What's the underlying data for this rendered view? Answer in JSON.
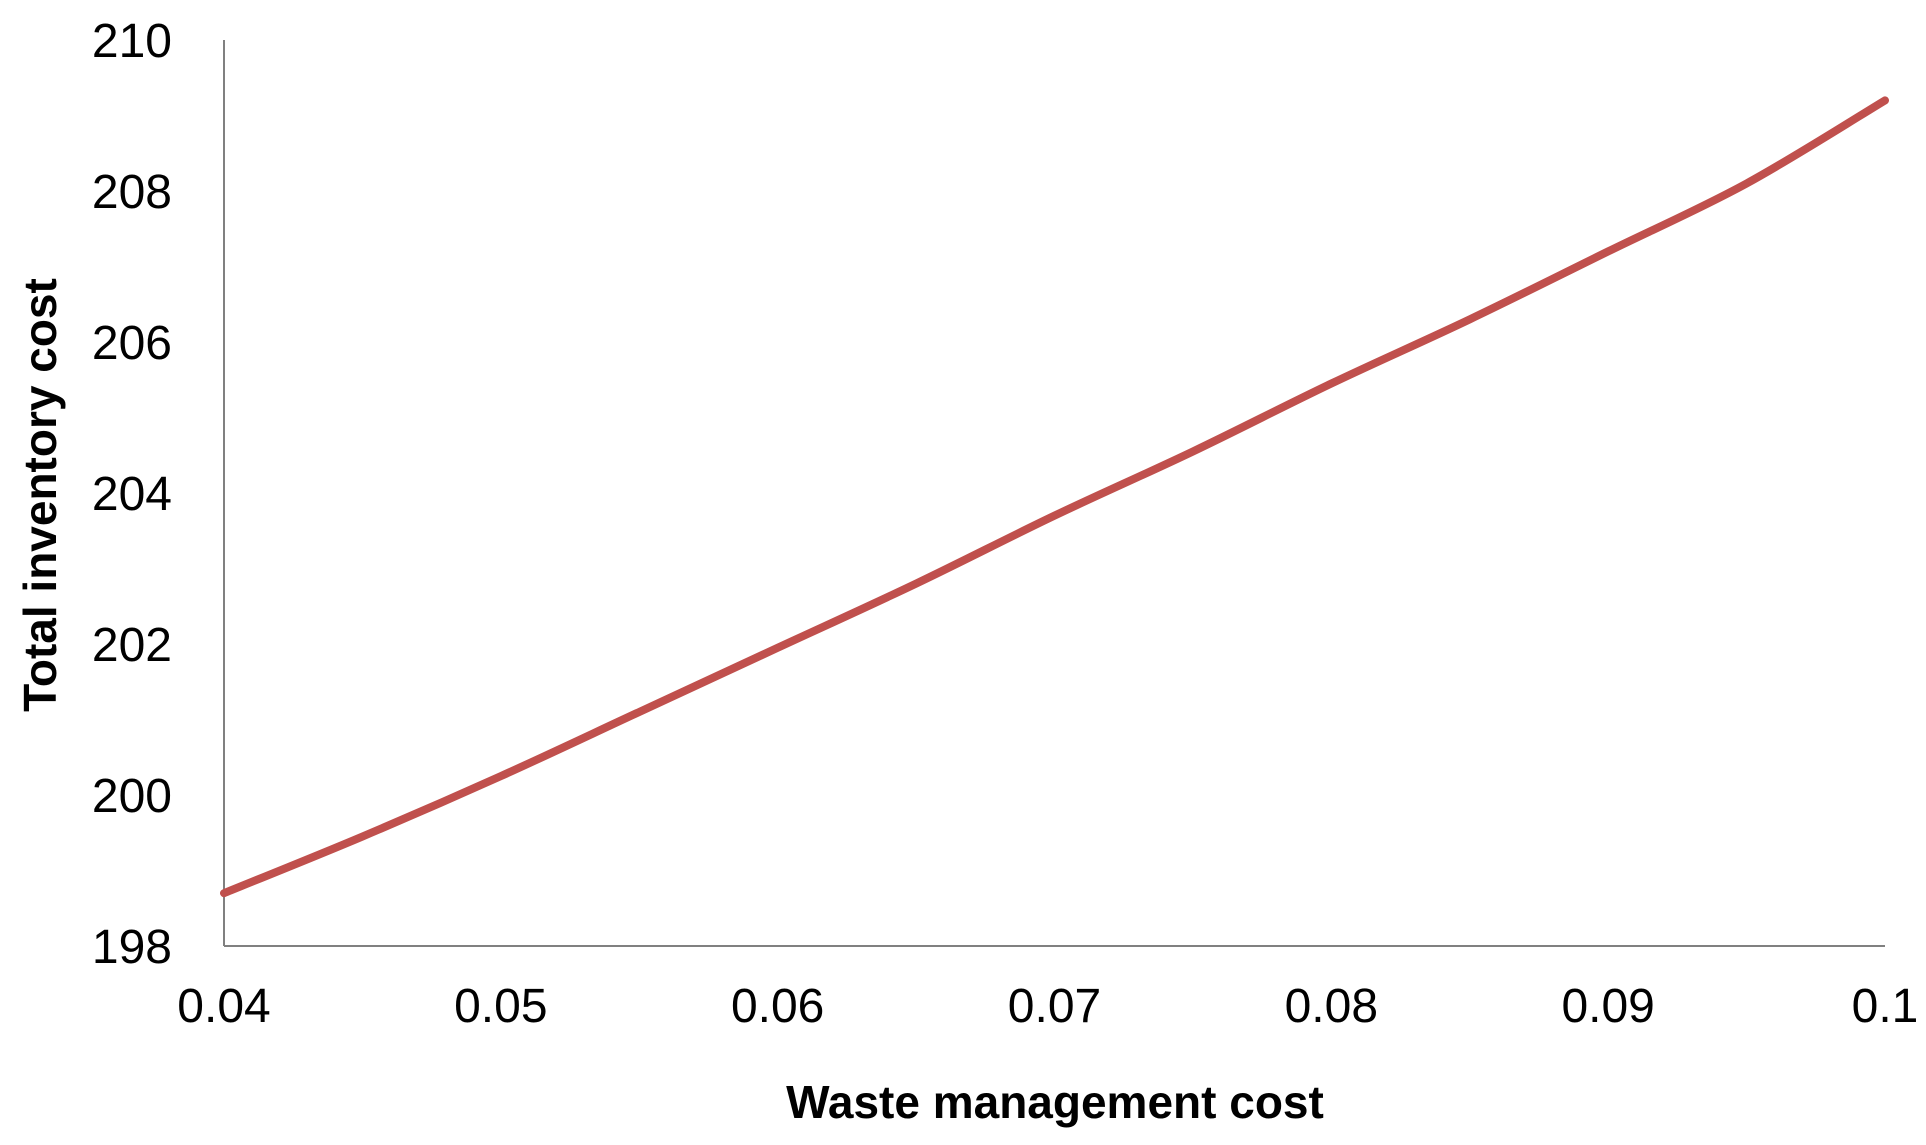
{
  "chart_data": {
    "type": "line",
    "title": "",
    "xlabel": "Waste management  cost",
    "ylabel": "Total inventory cost",
    "xlim": [
      0.04,
      0.1
    ],
    "ylim": [
      198,
      210
    ],
    "xticks": [
      0.04,
      0.05,
      0.06,
      0.07,
      0.08,
      0.09,
      0.1
    ],
    "xtick_labels": [
      "0.04",
      "0.05",
      "0.06",
      "0.07",
      "0.08",
      "0.09",
      "0.1"
    ],
    "yticks": [
      198,
      200,
      202,
      204,
      206,
      208,
      210
    ],
    "ytick_labels": [
      "198",
      "200",
      "202",
      "204",
      "206",
      "208",
      "210"
    ],
    "grid": false,
    "legend": "none",
    "series": [
      {
        "color": "#c0504d",
        "x": [
          0.04,
          0.045,
          0.05,
          0.055,
          0.06,
          0.065,
          0.07,
          0.075,
          0.08,
          0.085,
          0.09,
          0.095,
          0.1
        ],
        "y": [
          198.7,
          199.45,
          200.25,
          201.1,
          201.95,
          202.8,
          203.7,
          204.55,
          205.45,
          206.3,
          207.2,
          208.1,
          209.2
        ]
      }
    ]
  }
}
